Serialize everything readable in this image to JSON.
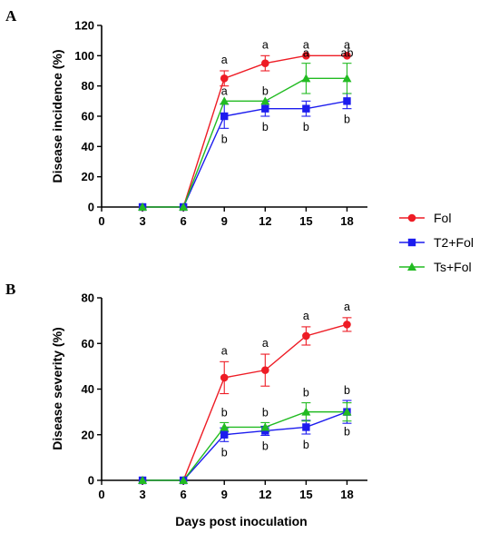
{
  "legend": {
    "entries": [
      {
        "name": "Fol",
        "color": "#ee1c25",
        "marker": "circle"
      },
      {
        "name": "T2+Fol",
        "color": "#1c1cee",
        "marker": "square"
      },
      {
        "name": "Ts+Fol",
        "color": "#22bb22",
        "marker": "triangle"
      }
    ]
  },
  "shared_xlabel": "Days post inoculation",
  "chart_data": [
    {
      "type": "line",
      "panel_label": "A",
      "ylabel": "Disease incidence (%)",
      "xlabel": "",
      "x_ticks": [
        0,
        3,
        6,
        9,
        12,
        15,
        18
      ],
      "y_ticks": [
        0,
        20,
        40,
        60,
        80,
        100,
        120
      ],
      "xlim": [
        0,
        19.5
      ],
      "ylim": [
        0,
        120
      ],
      "grid": false,
      "x": [
        3,
        6,
        9,
        12,
        15,
        18
      ],
      "series": [
        {
          "name": "Fol",
          "color": "#ee1c25",
          "marker": "circle",
          "values": [
            0,
            0,
            85,
            95,
            100,
            100
          ],
          "errors": [
            0,
            0,
            5,
            5,
            0,
            0
          ],
          "letters": [
            "",
            "",
            "a",
            "a",
            "a",
            "a"
          ]
        },
        {
          "name": "T2+Fol",
          "color": "#1c1cee",
          "marker": "square",
          "values": [
            0,
            0,
            60,
            65,
            65,
            70
          ],
          "errors": [
            0,
            0,
            8,
            5,
            5,
            5
          ],
          "letters": [
            "",
            "",
            "b",
            "b",
            "b",
            "b"
          ]
        },
        {
          "name": "Ts+Fol",
          "color": "#22bb22",
          "marker": "triangle",
          "values": [
            0,
            0,
            70,
            70,
            85,
            85
          ],
          "errors": [
            0,
            0,
            0,
            0,
            10,
            10
          ],
          "letters": [
            "",
            "",
            "a",
            "b",
            "a",
            "ab"
          ]
        }
      ]
    },
    {
      "type": "line",
      "panel_label": "B",
      "ylabel": "Disease severity (%)",
      "xlabel": "Days post inoculation",
      "x_ticks": [
        0,
        3,
        6,
        9,
        12,
        15,
        18
      ],
      "y_ticks": [
        0,
        20,
        40,
        60,
        80
      ],
      "xlim": [
        0,
        19.5
      ],
      "ylim": [
        0,
        80
      ],
      "grid": false,
      "x": [
        3,
        6,
        9,
        12,
        15,
        18
      ],
      "series": [
        {
          "name": "Fol",
          "color": "#ee1c25",
          "marker": "circle",
          "values": [
            0,
            0,
            45,
            48.3,
            63.3,
            68.3
          ],
          "errors": [
            0,
            0,
            7,
            7,
            4,
            3
          ],
          "letters": [
            "",
            "",
            "a",
            "a",
            "a",
            "a"
          ]
        },
        {
          "name": "T2+Fol",
          "color": "#1c1cee",
          "marker": "square",
          "values": [
            0,
            0,
            20,
            21.7,
            23.3,
            30
          ],
          "errors": [
            0,
            0,
            3,
            2,
            3,
            5
          ],
          "letters": [
            "",
            "",
            "b",
            "b",
            "b",
            "b"
          ]
        },
        {
          "name": "Ts+Fol",
          "color": "#22bb22",
          "marker": "triangle",
          "values": [
            0,
            0,
            23.3,
            23.3,
            30,
            30
          ],
          "errors": [
            0,
            0,
            2,
            2,
            4,
            4
          ],
          "letters": [
            "",
            "",
            "b",
            "b",
            "b",
            "b"
          ]
        }
      ]
    }
  ]
}
